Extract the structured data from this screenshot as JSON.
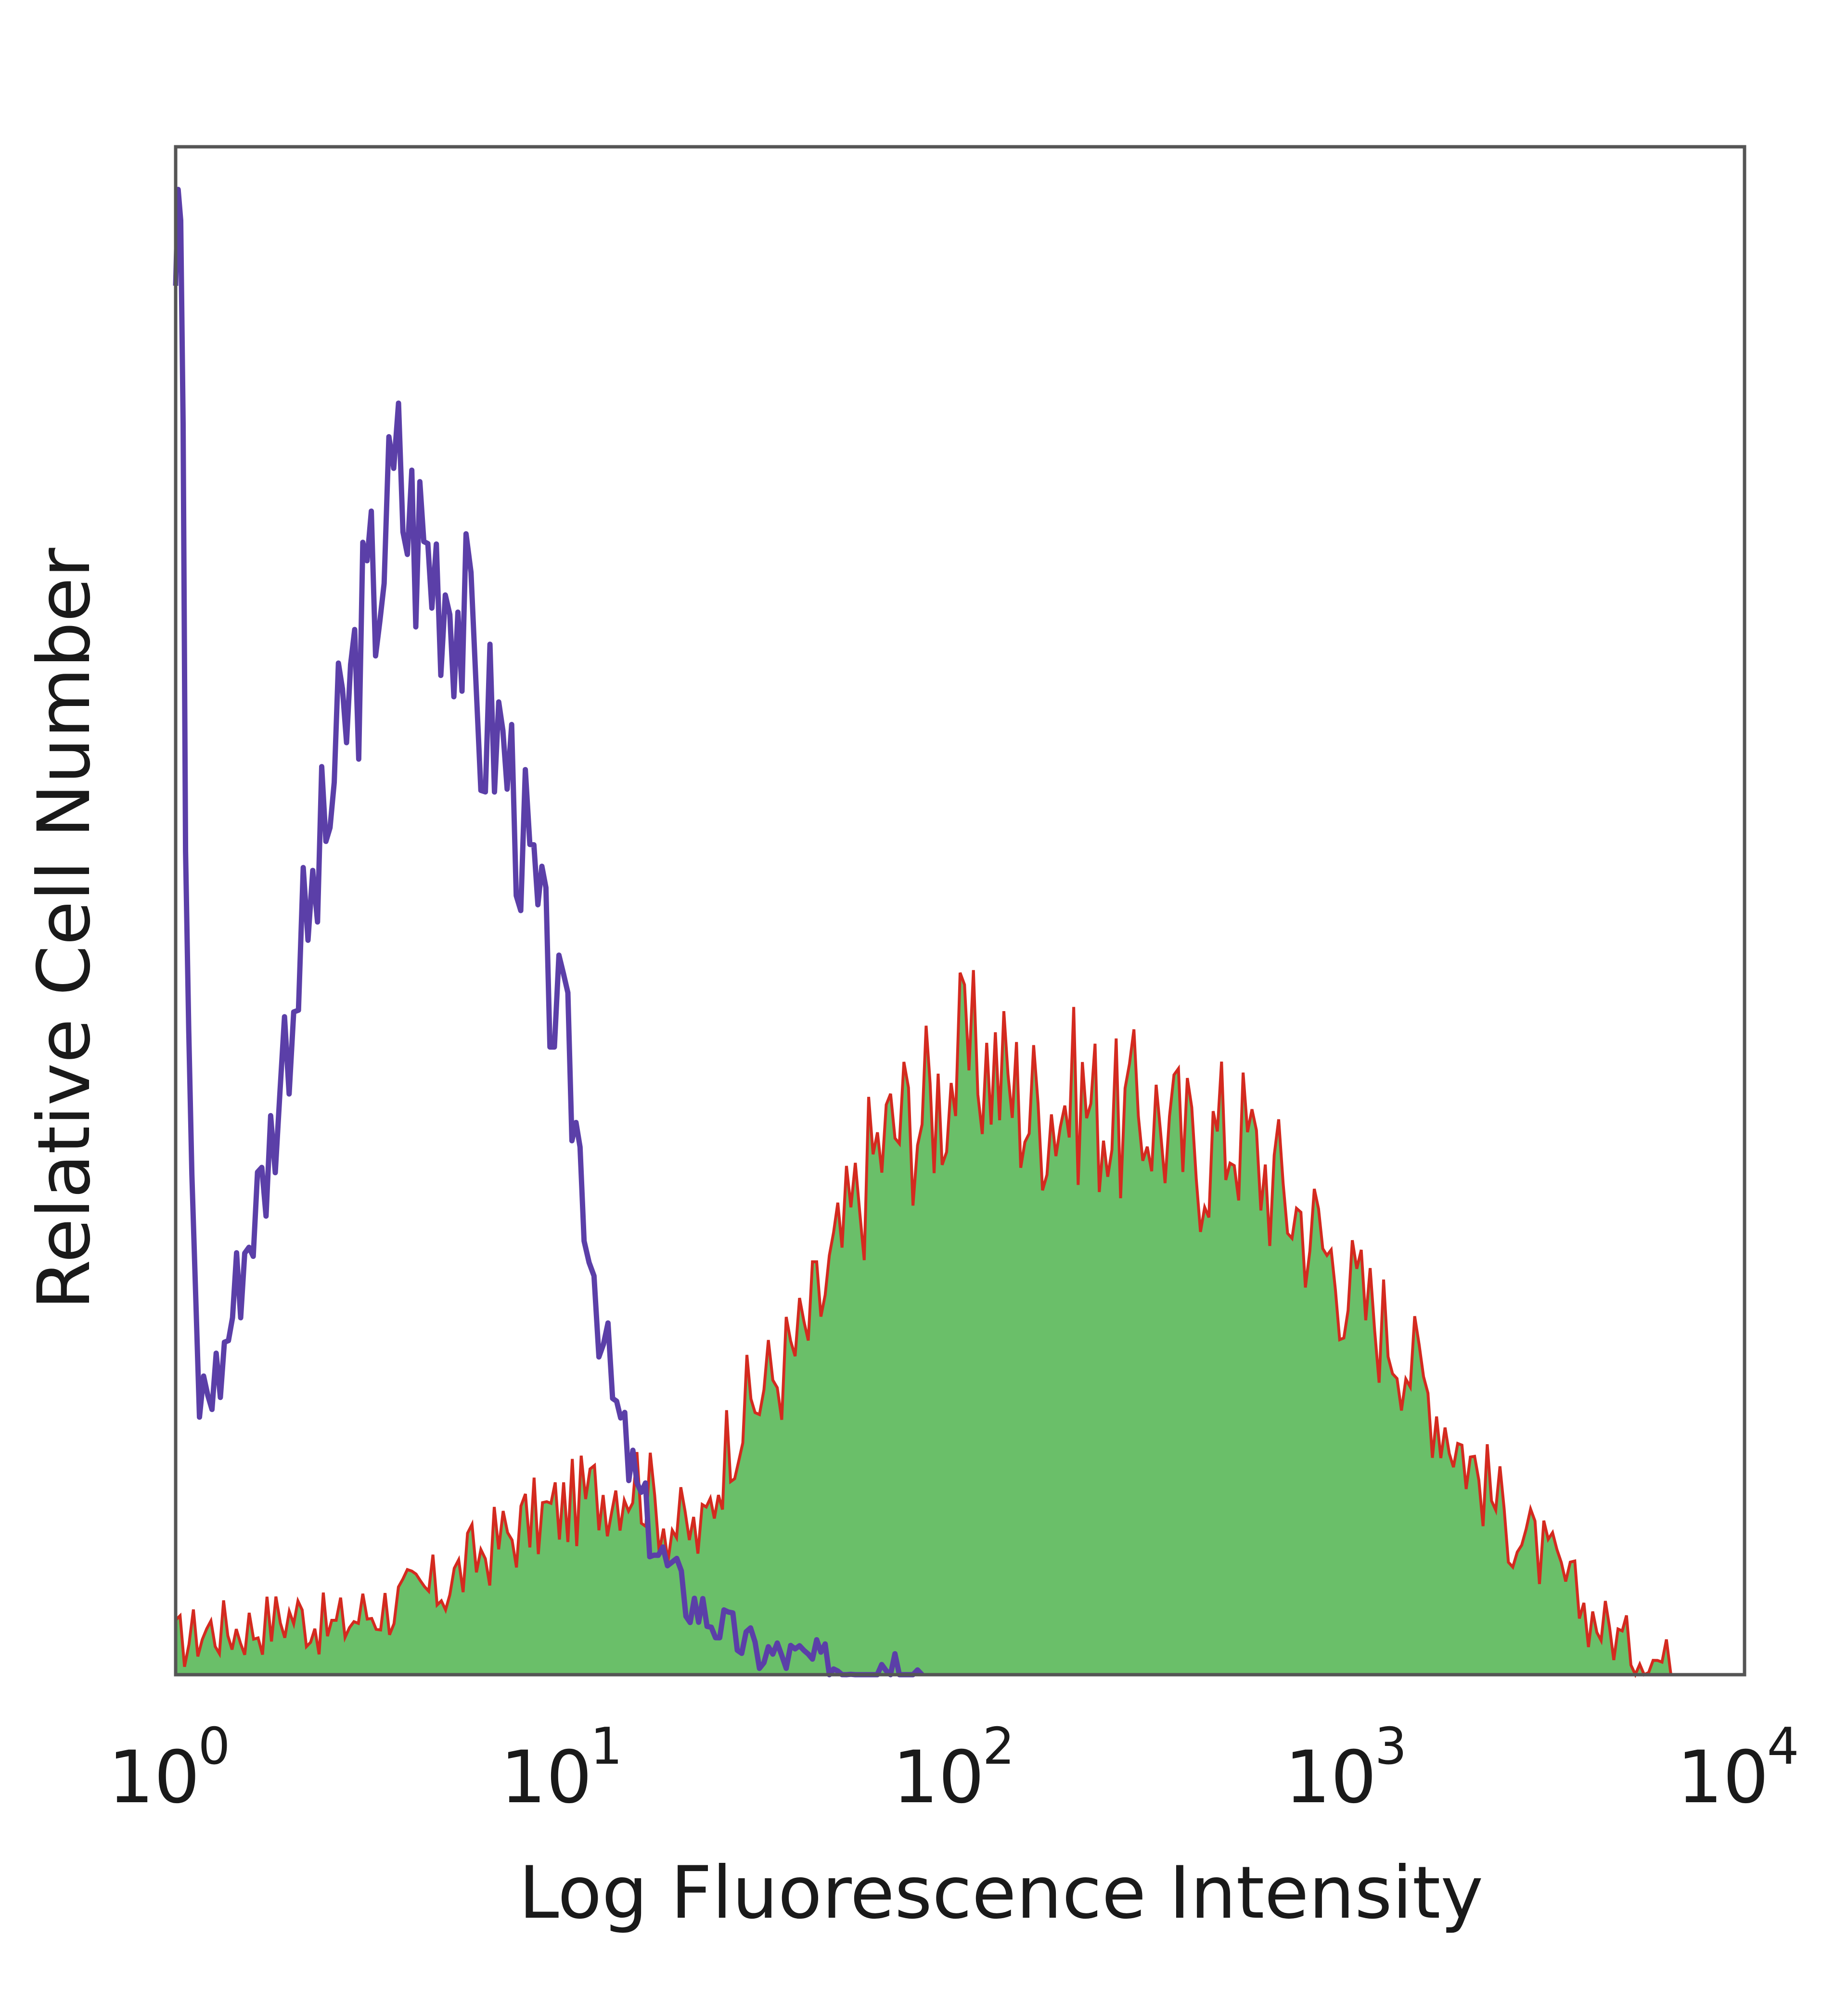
{
  "chart_data": {
    "type": "histogram",
    "title": "",
    "xlabel": "Log Fluorescence Intensity",
    "ylabel": "Relative Cell Number",
    "x_scale": "log",
    "xlim": [
      1,
      10000
    ],
    "ylim": [
      0,
      100
    ],
    "grid": false,
    "legend": "none",
    "x_ticks": [
      {
        "base": "10",
        "exp": "0",
        "value": 1
      },
      {
        "base": "10",
        "exp": "1",
        "value": 10
      },
      {
        "base": "10",
        "exp": "2",
        "value": 100
      },
      {
        "base": "10",
        "exp": "3",
        "value": 1000
      },
      {
        "base": "10",
        "exp": "4",
        "value": 10000
      }
    ],
    "series": [
      {
        "style": "filled",
        "color": "#6abf69",
        "outline_color": "#d42a1f",
        "points": [
          [
            1.0,
            2
          ],
          [
            1.2,
            3
          ],
          [
            1.5,
            3
          ],
          [
            2.0,
            4
          ],
          [
            2.5,
            3
          ],
          [
            3.0,
            4
          ],
          [
            4.0,
            5
          ],
          [
            5.0,
            6
          ],
          [
            6.0,
            8
          ],
          [
            8.0,
            10
          ],
          [
            10.0,
            11
          ],
          [
            12.0,
            12
          ],
          [
            15.0,
            13
          ],
          [
            18.0,
            10
          ],
          [
            22.0,
            9
          ],
          [
            26.0,
            16
          ],
          [
            30.0,
            18
          ],
          [
            40.0,
            22
          ],
          [
            50.0,
            28
          ],
          [
            60.0,
            34
          ],
          [
            70.0,
            36
          ],
          [
            80.0,
            37
          ],
          [
            90.0,
            38
          ],
          [
            100.0,
            40
          ],
          [
            120.0,
            40
          ],
          [
            150.0,
            37
          ],
          [
            200.0,
            38
          ],
          [
            250.0,
            36
          ],
          [
            300.0,
            37
          ],
          [
            400.0,
            34
          ],
          [
            500.0,
            36
          ],
          [
            600.0,
            33
          ],
          [
            800.0,
            29
          ],
          [
            1000.0,
            25
          ],
          [
            1300.0,
            22
          ],
          [
            1600.0,
            18
          ],
          [
            2000.0,
            14
          ],
          [
            2500.0,
            10
          ],
          [
            3000.0,
            8
          ],
          [
            3500.0,
            6
          ],
          [
            4000.0,
            4
          ],
          [
            5000.0,
            2
          ],
          [
            6000.0,
            1
          ],
          [
            8000.0,
            0
          ]
        ]
      },
      {
        "style": "line",
        "color": "#5b3fa8",
        "points": [
          [
            1.0,
            100
          ],
          [
            1.03,
            100
          ],
          [
            1.06,
            55
          ],
          [
            1.1,
            30
          ],
          [
            1.15,
            18
          ],
          [
            1.3,
            20
          ],
          [
            1.5,
            28
          ],
          [
            1.7,
            33
          ],
          [
            2.0,
            45
          ],
          [
            2.3,
            52
          ],
          [
            2.6,
            60
          ],
          [
            3.0,
            68
          ],
          [
            3.4,
            74
          ],
          [
            3.7,
            78
          ],
          [
            4.0,
            75
          ],
          [
            4.5,
            73
          ],
          [
            5.0,
            72
          ],
          [
            5.5,
            68
          ],
          [
            6.0,
            62
          ],
          [
            6.5,
            62
          ],
          [
            7.0,
            60
          ],
          [
            8.0,
            52
          ],
          [
            9.0,
            45
          ],
          [
            10.0,
            40
          ],
          [
            11.0,
            32
          ],
          [
            12.0,
            24
          ],
          [
            13.0,
            18
          ],
          [
            15.0,
            12
          ],
          [
            17.0,
            8
          ],
          [
            20.0,
            5
          ],
          [
            25.0,
            3
          ],
          [
            30.0,
            1.5
          ],
          [
            40.0,
            1
          ],
          [
            50.0,
            0.5
          ],
          [
            70.0,
            1
          ],
          [
            80.0,
            0
          ]
        ]
      }
    ]
  }
}
